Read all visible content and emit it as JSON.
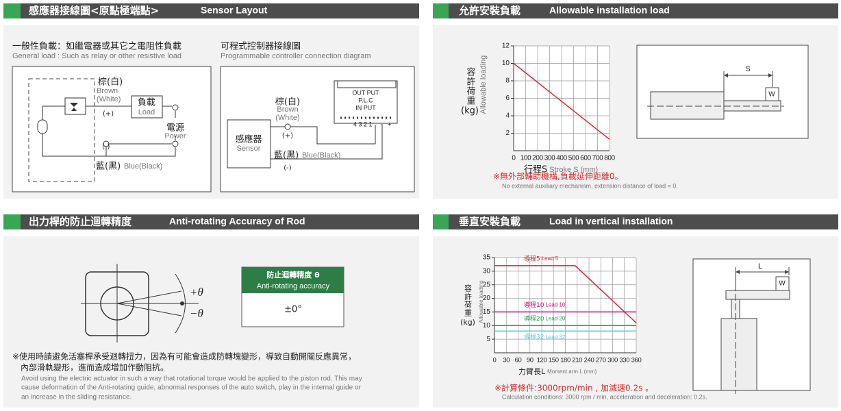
{
  "sensor_layout": {
    "title_zh": "感應器接線圖<原點極端點>",
    "title_en": "Sensor Layout",
    "general": {
      "title_zh": "一般性負載：如繼電器或其它之電阻性負載",
      "title_en": "General load : Such as relay or other resistive load",
      "brown_zh": "棕(白)",
      "brown_en": "Brown",
      "white_en": "(White)",
      "plus": "(+)",
      "load_zh": "負載",
      "load_en": "Load",
      "power_zh": "電源",
      "power_en": "Power",
      "minus": "(-)",
      "blue_zh": "藍(黑)",
      "blue_en": "Blue(Black)"
    },
    "plc": {
      "title_zh": "可程式控制器接線圖",
      "title_en": "Programmable controller connection diagram",
      "brown_zh": "棕(白)",
      "brown_en": "Brown",
      "white_en": "(White)",
      "plus": "(+)",
      "sensor_zh": "感應器",
      "sensor_en": "Sensor",
      "output": "OUT PUT",
      "plc": "P.L.C",
      "input": "IN PUT",
      "pins": "4 3 2 1",
      "pin_minus": "-",
      "pin_plus": "+",
      "blue_zh": "藍(黑)",
      "blue_en": "Blue(Black)",
      "minus": "(-)"
    }
  },
  "allowable_load": {
    "title_zh": "允許安裝負載",
    "title_en": "Allowable installation load",
    "chart_data": {
      "type": "line",
      "y_label_zh": "容許荷重",
      "y_unit": "(kg)",
      "y_label_en": "Allowable loading",
      "x_label_zh": "行程S",
      "x_label_en": "Stroke S (mm)",
      "xlim": [
        0,
        800
      ],
      "ylim": [
        0,
        12
      ],
      "xticks": [
        0,
        100,
        200,
        300,
        400,
        500,
        600,
        700,
        800
      ],
      "yticks": [
        2,
        4,
        6,
        8,
        10,
        12
      ],
      "grid": true,
      "series": [
        {
          "color": "#e0262b",
          "x": [
            0,
            800
          ],
          "values": [
            10,
            1.3
          ]
        }
      ]
    },
    "note_zh": "※無外部輔助機構,負載延伸距離0。",
    "note_en": "No external auxiliary mechanism, extension distance of load = 0.",
    "diagram": {
      "stroke": "S",
      "weight": "W"
    }
  },
  "anti_rotating": {
    "title_zh": "出力桿的防止迴轉精度",
    "title_en": "Anti-rotating Accuracy of Rod",
    "plus": "+θ",
    "minus": "−θ",
    "table": {
      "header_zh": "防止迴轉精度 θ",
      "header_en": "Anti-rotating accuracy",
      "value": "±0°"
    },
    "note_zh": [
      "※使用時請避免活塞桿承受迴轉扭力，因為有可能會造成防轉塊變形，導致自動開關反應異常，",
      "內部滑軌變形，進而造成增加作動阻抗。"
    ],
    "note_en": [
      "Avoid using the electric actuator in such a way that rotational torque would be applied to the piston rod. This may",
      "cause deformation of the Anti-rotating guide, abnormal responses of the auto switch, play in the internal guide or",
      "an increase in the sliding resistance."
    ]
  },
  "vertical_load": {
    "title_zh": "垂直安裝負載",
    "title_en": "Load in vertical installation",
    "chart_data": {
      "type": "line",
      "y_label_zh": "容許荷重",
      "y_unit": "(kg)",
      "y_label_en": "Allowable loading",
      "x_label_zh": "力臂長L",
      "x_label_en": "Moment arm L (mm)",
      "xlim": [
        0,
        360
      ],
      "ylim": [
        0,
        35
      ],
      "xticks": [
        0,
        30,
        60,
        90,
        120,
        150,
        180,
        210,
        240,
        270,
        300,
        330,
        360
      ],
      "yticks": [
        5,
        10,
        15,
        20,
        25,
        30,
        35
      ],
      "grid": true,
      "series": [
        {
          "name": "導程5",
          "name_en": "Lead 5",
          "color": "#e0262b",
          "x": [
            0,
            205,
            360
          ],
          "values": [
            32,
            32,
            11
          ]
        },
        {
          "name": "導程10",
          "name_en": "Lead 10",
          "color": "#d6006e",
          "x": [
            0,
            360
          ],
          "values": [
            15,
            15
          ]
        },
        {
          "name": "導程20",
          "name_en": "Lead 20",
          "color": "#2aa05a",
          "x": [
            0,
            360
          ],
          "values": [
            10,
            10
          ]
        },
        {
          "name": "導程32",
          "name_en": "Lead 32",
          "color": "#5bc8d8",
          "x": [
            0,
            360
          ],
          "values": [
            8,
            8
          ]
        }
      ]
    },
    "note_zh": "※計算條件:3000rpm/min , 加減速0.2s 。",
    "note_en": "Calculation conditions: 3000 rpm / min, acceleration and deceleration: 0.2s.",
    "diagram": {
      "arm": "L",
      "weight": "W"
    }
  }
}
